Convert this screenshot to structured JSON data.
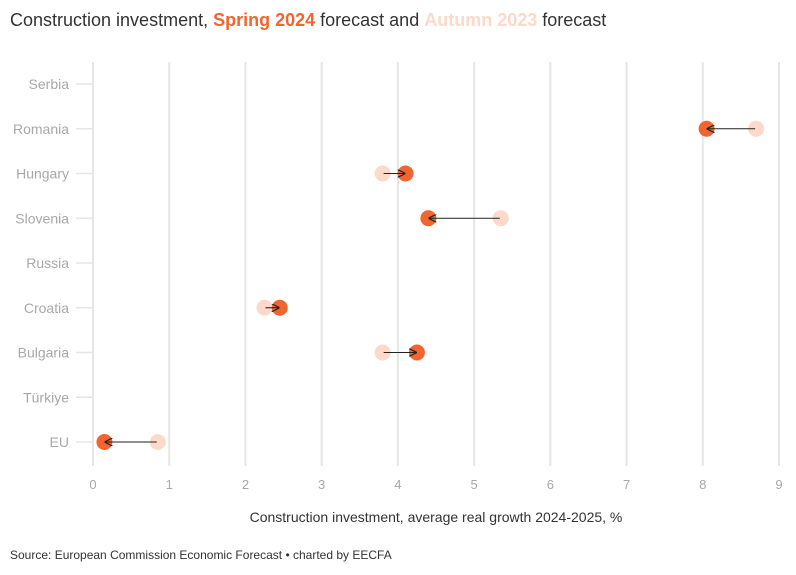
{
  "title": {
    "prefix": "Construction investment, ",
    "spring_label": "Spring 2024",
    "middle": " forecast and ",
    "autumn_label": "Autumn 2023",
    "suffix": " forecast"
  },
  "source": "Source: European Commission Economic Forecast • charted by EECFA",
  "colors": {
    "spring": "#f26430",
    "autumn": "#fdd9c9",
    "grid": "#e6e6e6",
    "arrow": "#222222"
  },
  "chart_data": {
    "type": "dumbbell",
    "title": "Construction investment, Spring 2024 forecast and Autumn 2023 forecast",
    "xlabel": "Construction investment, average real growth 2024-2025, %",
    "ylabel": "",
    "xlim": [
      0,
      9
    ],
    "xticks": [
      0,
      1,
      2,
      3,
      4,
      5,
      6,
      7,
      8,
      9
    ],
    "grid": "vertical",
    "categories": [
      "Serbia",
      "Romania",
      "Hungary",
      "Slovenia",
      "Russia",
      "Croatia",
      "Bulgaria",
      "Türkiye",
      "EU"
    ],
    "series": [
      {
        "name": "Autumn 2023",
        "values": [
          null,
          8.7,
          3.8,
          5.35,
          null,
          2.25,
          3.8,
          null,
          0.85
        ]
      },
      {
        "name": "Spring 2024",
        "values": [
          null,
          8.05,
          4.1,
          4.4,
          null,
          2.45,
          4.25,
          null,
          0.15
        ]
      }
    ]
  }
}
